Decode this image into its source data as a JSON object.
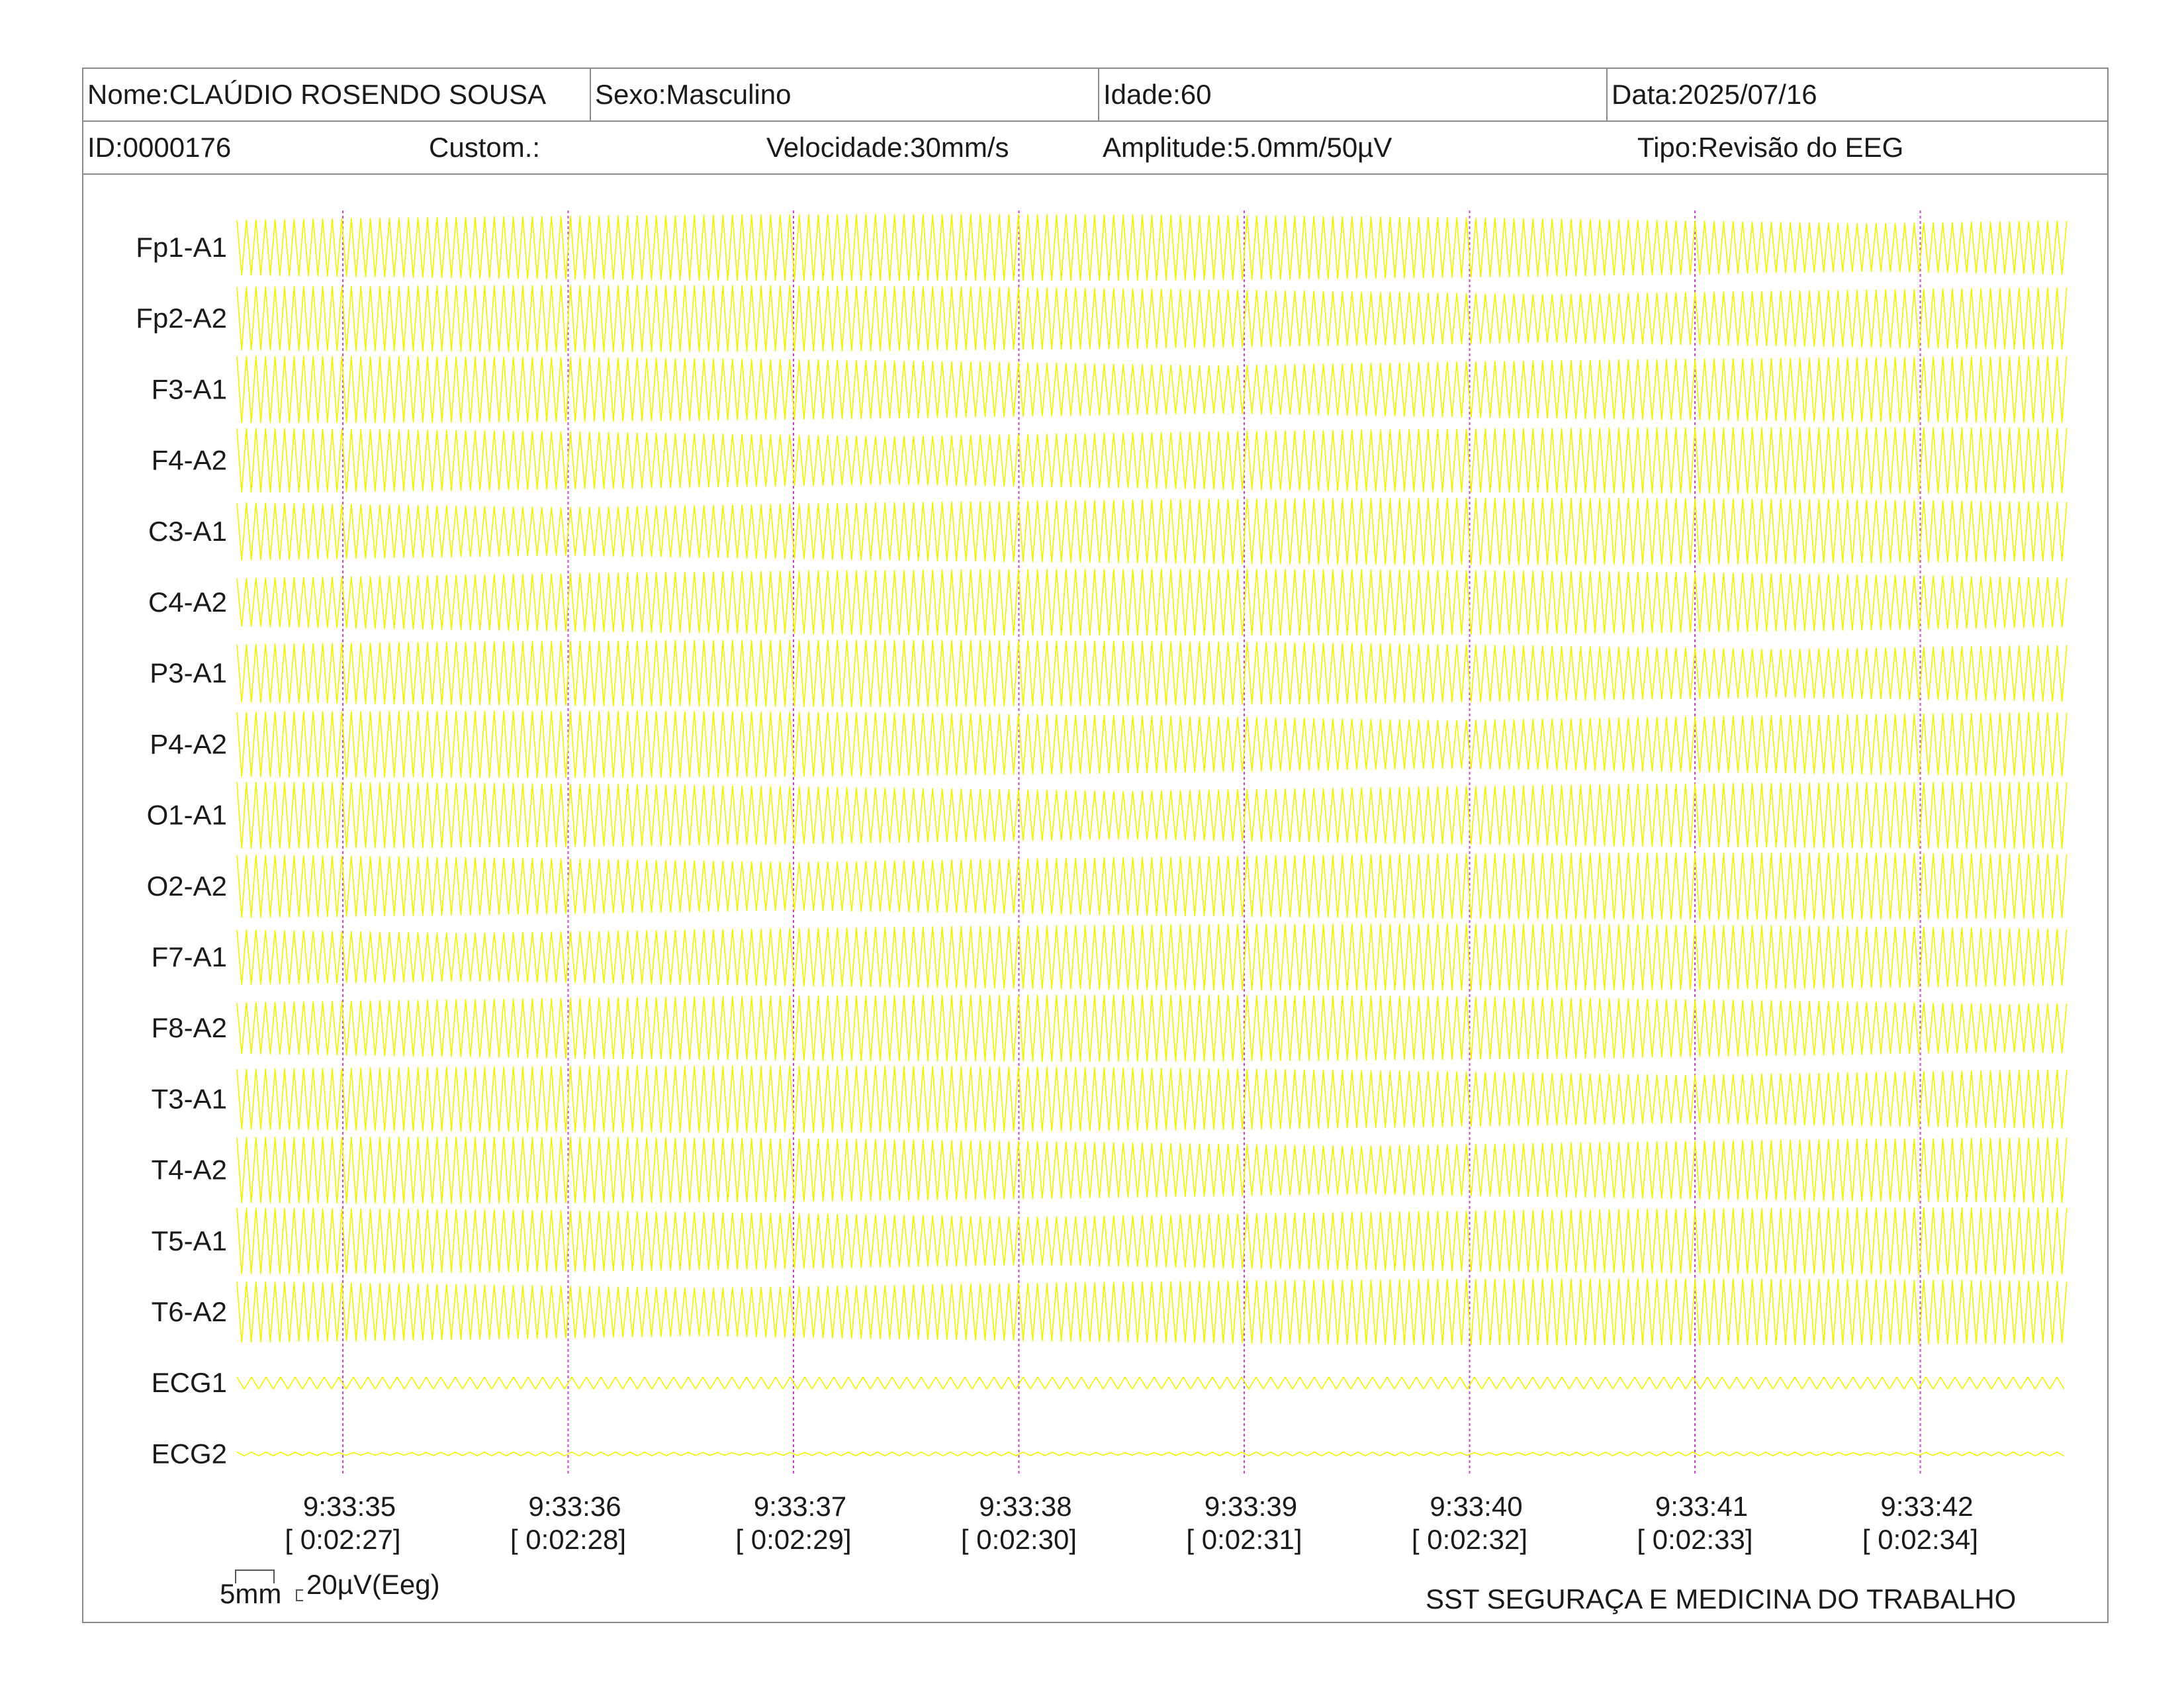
{
  "header": {
    "name": "Nome:CLAÚDIO ROSENDO SOUSA",
    "sex": "Sexo:Masculino",
    "age": "Idade:60",
    "date": "Data:2025/07/16",
    "id": "ID:0000176",
    "custom": "Custom.:",
    "speed": "Velocidade:30mm/s",
    "amplitude": "Amplitude:5.0mm/50µV",
    "type": "Tipo:Revisão do EEG"
  },
  "channels": [
    "Fp1-A1",
    "Fp2-A2",
    "F3-A1",
    "F4-A2",
    "C3-A1",
    "C4-A2",
    "P3-A1",
    "P4-A2",
    "O1-A1",
    "O2-A2",
    "F7-A1",
    "F8-A2",
    "T3-A1",
    "T4-A2",
    "T5-A1",
    "T6-A2",
    "ECG1",
    "ECG2"
  ],
  "time_marks": [
    {
      "clock": "9:33:35",
      "elapsed": "[ 0:02:27]"
    },
    {
      "clock": "9:33:36",
      "elapsed": "[ 0:02:28]"
    },
    {
      "clock": "9:33:37",
      "elapsed": "[ 0:02:29]"
    },
    {
      "clock": "9:33:38",
      "elapsed": "[ 0:02:30]"
    },
    {
      "clock": "9:33:39",
      "elapsed": "[ 0:02:31]"
    },
    {
      "clock": "9:33:40",
      "elapsed": "[ 0:02:32]"
    },
    {
      "clock": "9:33:41",
      "elapsed": "[ 0:02:33]"
    },
    {
      "clock": "9:33:42",
      "elapsed": "[ 0:02:34]"
    }
  ],
  "scale": {
    "time": "5mm",
    "amplitude": "20µV(Eeg)"
  },
  "footer": {
    "company": "SST SEGURAÇA E MEDICINA DO TRABALHO"
  },
  "colors": {
    "trace": "#f2f200",
    "marker": "#cc44cc",
    "border": "#8a8a8a"
  }
}
